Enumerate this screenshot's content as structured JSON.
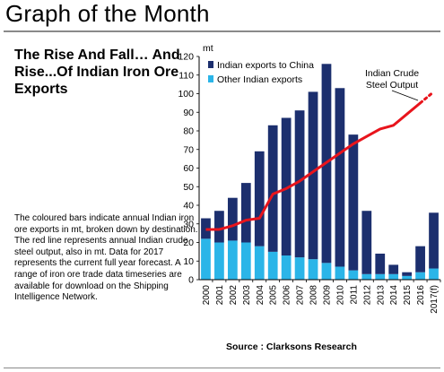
{
  "page": {
    "title": "Graph of the Month",
    "headline": "The Rise And Fall… And Rise...Of Indian Iron Ore Exports",
    "body": "The coloured bars indicate annual Indian iron ore exports in mt, broken down by destination. The red line represents annual Indian crude steel output, also in mt. Data for 2017 represents the current full year forecast. A range of iron ore trade data timeseries are available for download on the Shipping Intelligence Network.",
    "source": "Source : Clarksons Research"
  },
  "colors": {
    "china": "#1c2f6e",
    "other": "#2bb5e8",
    "steel": "#e8141c"
  },
  "chart_data": {
    "type": "bar",
    "stacked": true,
    "categories": [
      "2000",
      "2001",
      "2002",
      "2003",
      "2004",
      "2005",
      "2006",
      "2007",
      "2008",
      "2009",
      "2010",
      "2011",
      "2012",
      "2013",
      "2014",
      "2015",
      "2016",
      "2017(f)"
    ],
    "ylabel": "mt",
    "ylim": [
      0,
      120
    ],
    "yticks": [
      0,
      10,
      20,
      30,
      40,
      50,
      60,
      70,
      80,
      90,
      100,
      110,
      120
    ],
    "legend_position": "top-left",
    "series": [
      {
        "name": "Other Indian exports",
        "color": "#2bb5e8",
        "values": [
          22,
          20,
          21,
          20,
          18,
          15,
          13,
          12,
          11,
          9,
          7,
          5,
          3,
          3,
          3,
          2,
          4,
          6
        ]
      },
      {
        "name": "Indian exports to China",
        "color": "#1c2f6e",
        "values": [
          11,
          17,
          23,
          32,
          51,
          68,
          74,
          79,
          90,
          107,
          96,
          73,
          34,
          11,
          5,
          2,
          14,
          30
        ]
      }
    ],
    "line": {
      "name": "Indian Crude Steel Output",
      "color": "#e8141c",
      "values": [
        27,
        27,
        29,
        32,
        33,
        46,
        49,
        53,
        58,
        63,
        68,
        73,
        77,
        81,
        83,
        89,
        95
      ],
      "forecast": [
        95,
        101
      ]
    }
  }
}
